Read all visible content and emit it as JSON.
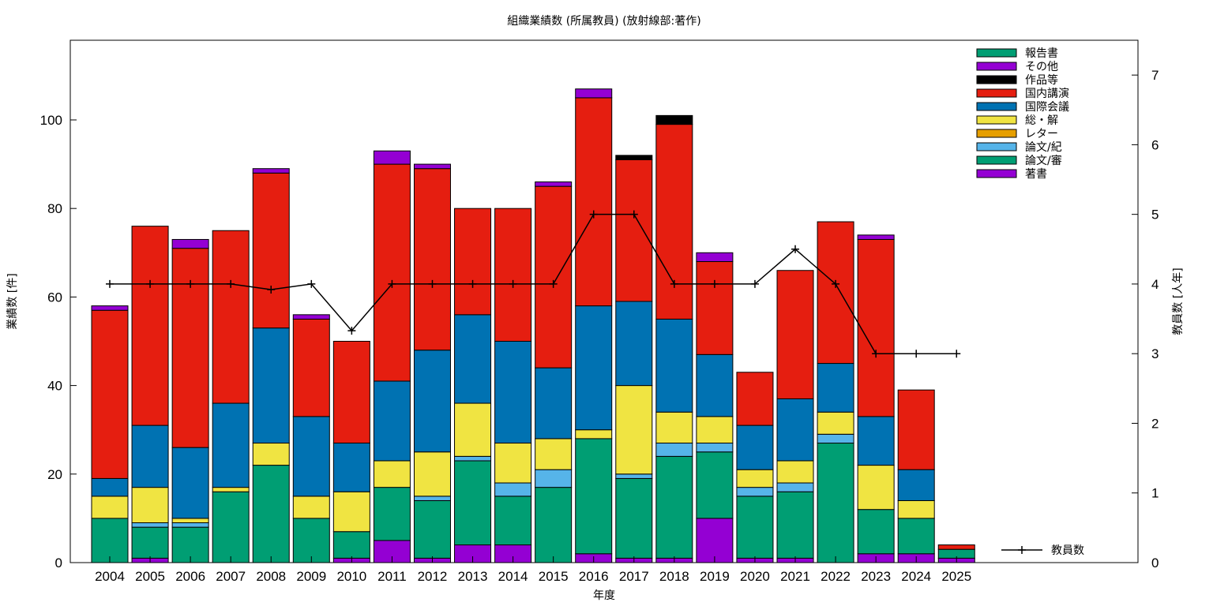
{
  "chart_data": {
    "type": "bar",
    "stacked": true,
    "title": "組織業績数 (所属教員) (放射線部:著作)",
    "xlabel": "年度",
    "ylabel": "業績数 [件]",
    "y2label": "教員数 [人年]",
    "ylim": [
      0,
      118
    ],
    "y2lim": [
      0,
      7.5
    ],
    "yticks": [
      0,
      20,
      40,
      60,
      80,
      100
    ],
    "y2ticks": [
      0,
      1,
      2,
      3,
      4,
      5,
      6,
      7
    ],
    "grid": false,
    "legend_position": "top-right",
    "categories": [
      "2004",
      "2005",
      "2006",
      "2007",
      "2008",
      "2009",
      "2010",
      "2011",
      "2012",
      "2013",
      "2014",
      "2015",
      "2016",
      "2017",
      "2018",
      "2019",
      "2020",
      "2021",
      "2022",
      "2023",
      "2024",
      "2025"
    ],
    "series": [
      {
        "name": "著書",
        "color": "#9400d3",
        "values": [
          0,
          1,
          0,
          0,
          0,
          0,
          1,
          5,
          1,
          4,
          4,
          0,
          2,
          1,
          1,
          10,
          1,
          1,
          0,
          2,
          2,
          1
        ]
      },
      {
        "name": "論文/審",
        "color": "#009e73",
        "values": [
          10,
          7,
          8,
          16,
          22,
          10,
          6,
          12,
          13,
          19,
          11,
          17,
          26,
          18,
          23,
          15,
          14,
          15,
          27,
          10,
          8,
          2
        ]
      },
      {
        "name": "論文/紀",
        "color": "#56b4e9",
        "values": [
          0,
          1,
          1,
          0,
          0,
          0,
          0,
          0,
          1,
          1,
          3,
          4,
          0,
          1,
          3,
          2,
          2,
          2,
          2,
          0,
          0,
          0
        ]
      },
      {
        "name": "レター",
        "color": "#e69f00",
        "values": [
          0,
          0,
          0,
          0,
          0,
          0,
          0,
          0,
          0,
          0,
          0,
          0,
          0,
          0,
          0,
          0,
          0,
          0,
          0,
          0,
          0,
          0
        ]
      },
      {
        "name": "総・解",
        "color": "#f0e442",
        "values": [
          5,
          8,
          1,
          1,
          5,
          5,
          9,
          6,
          10,
          12,
          9,
          7,
          2,
          20,
          7,
          6,
          4,
          5,
          5,
          10,
          4,
          0
        ]
      },
      {
        "name": "国際会議",
        "color": "#0072b2",
        "values": [
          4,
          14,
          16,
          19,
          26,
          18,
          11,
          18,
          23,
          20,
          23,
          16,
          28,
          19,
          21,
          14,
          10,
          14,
          11,
          11,
          7,
          0
        ]
      },
      {
        "name": "国内講演",
        "color": "#e51e10",
        "values": [
          38,
          45,
          45,
          39,
          35,
          22,
          23,
          49,
          41,
          24,
          30,
          41,
          47,
          32,
          44,
          21,
          12,
          29,
          32,
          40,
          18,
          1
        ]
      },
      {
        "name": "作品等",
        "color": "#000000",
        "values": [
          0,
          0,
          0,
          0,
          0,
          0,
          0,
          0,
          0,
          0,
          0,
          0,
          0,
          1,
          2,
          0,
          0,
          0,
          0,
          0,
          0,
          0
        ]
      },
      {
        "name": "その他",
        "color": "#9400d3",
        "values": [
          1,
          0,
          2,
          0,
          1,
          1,
          0,
          3,
          1,
          0,
          0,
          1,
          2,
          0,
          0,
          2,
          0,
          0,
          0,
          1,
          0,
          0
        ]
      },
      {
        "name": "報告書",
        "color": "#009e73",
        "values": [
          0,
          0,
          0,
          0,
          0,
          0,
          0,
          0,
          0,
          0,
          0,
          0,
          0,
          0,
          0,
          0,
          0,
          0,
          0,
          0,
          0,
          0
        ]
      }
    ],
    "legend_order": [
      "報告書",
      "その他",
      "作品等",
      "国内講演",
      "国際会議",
      "総・解",
      "レター",
      "論文/紀",
      "論文/審",
      "著書"
    ],
    "line": {
      "name": "教員数",
      "axis": "y2",
      "color": "#000000",
      "categories": [
        "2004",
        "2005",
        "2006",
        "2007",
        "2008",
        "2009",
        "2010",
        "2011",
        "2012",
        "2013",
        "2014",
        "2015",
        "2016",
        "2017",
        "2018",
        "2019",
        "2020",
        "2021",
        "2022",
        "2023",
        "2024",
        "2025"
      ],
      "values": [
        4,
        4,
        4,
        4,
        3.92,
        4,
        3.33,
        4,
        4,
        4,
        4,
        4,
        5,
        5,
        4,
        4,
        4,
        4.5,
        4,
        3,
        3,
        3
      ]
    }
  }
}
